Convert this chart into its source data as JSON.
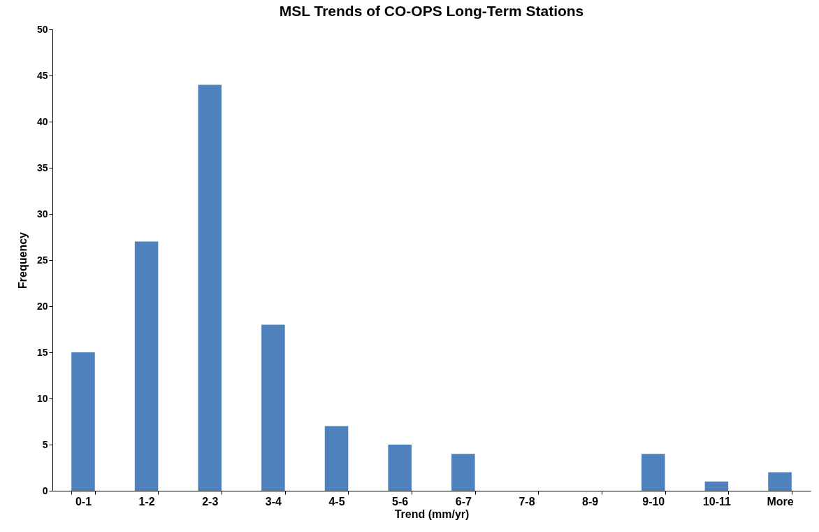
{
  "chart_data": {
    "type": "bar",
    "title": "MSL Trends of CO-OPS Long-Term Stations",
    "xlabel": "Trend (mm/yr)",
    "ylabel": "Frequency",
    "categories": [
      "0-1",
      "1-2",
      "2-3",
      "3-4",
      "4-5",
      "5-6",
      "6-7",
      "7-8",
      "8-9",
      "9-10",
      "10-11",
      "More"
    ],
    "values": [
      15,
      27,
      44,
      18,
      7,
      5,
      4,
      0,
      0,
      4,
      1,
      2
    ],
    "color": "#4f81bd",
    "ylim": [
      0,
      50
    ],
    "yticks": [
      0,
      5,
      10,
      15,
      20,
      25,
      30,
      35,
      40,
      45,
      50
    ],
    "grid": false
  }
}
